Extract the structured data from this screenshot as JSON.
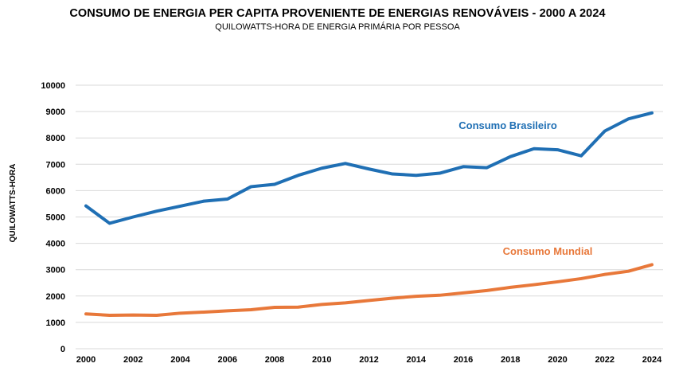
{
  "chart_data": {
    "type": "line",
    "title": "CONSUMO DE ENERGIA PER CAPITA PROVENIENTE DE ENERGIAS RENOVÁVEIS - 2000 A 2024",
    "subtitle": "QUILOWATTS-HORA DE ENERGIA PRIMÁRIA POR PESSOA",
    "xlabel": "",
    "ylabel": "QUILOWATTS-HORA",
    "x": [
      2000,
      2001,
      2002,
      2003,
      2004,
      2005,
      2006,
      2007,
      2008,
      2009,
      2010,
      2011,
      2012,
      2013,
      2014,
      2015,
      2016,
      2017,
      2018,
      2019,
      2020,
      2021,
      2022,
      2023,
      2024
    ],
    "xticks": [
      "2000",
      "2002",
      "2004",
      "2006",
      "2008",
      "2010",
      "2012",
      "2014",
      "2016",
      "2018",
      "2020",
      "2022",
      "2024"
    ],
    "yticks": [
      "0",
      "1000",
      "2000",
      "3000",
      "4000",
      "5000",
      "6000",
      "7000",
      "8000",
      "9000",
      "10000"
    ],
    "ylim": [
      0,
      10000
    ],
    "grid": true,
    "series": [
      {
        "name": "Consumo Brasileiro",
        "color": "#1f6fb4",
        "values": [
          5420,
          4760,
          5000,
          5220,
          5410,
          5600,
          5680,
          6150,
          6240,
          6580,
          6850,
          7030,
          6820,
          6630,
          6580,
          6660,
          6910,
          6870,
          7290,
          7590,
          7550,
          7320,
          8260,
          8720,
          8950
        ]
      },
      {
        "name": "Consumo Mundial",
        "color": "#e8783a",
        "values": [
          1320,
          1270,
          1280,
          1270,
          1350,
          1390,
          1440,
          1480,
          1570,
          1580,
          1680,
          1740,
          1830,
          1920,
          1990,
          2030,
          2120,
          2210,
          2330,
          2430,
          2540,
          2660,
          2820,
          2940,
          3190
        ]
      }
    ]
  }
}
